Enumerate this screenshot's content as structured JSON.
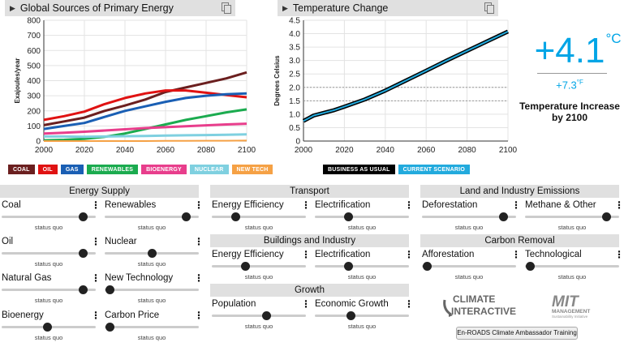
{
  "energy_panel": {
    "title": "Global Sources of Primary Energy"
  },
  "temp_panel": {
    "title": "Temperature Change"
  },
  "chart_data": [
    {
      "type": "area",
      "title": "Global Sources of Primary Energy",
      "ylabel": "Exajoules/year",
      "xlabel": "",
      "xlim": [
        2000,
        2100
      ],
      "ylim": [
        0,
        800
      ],
      "xticks": [
        "2000",
        "2020",
        "2040",
        "2060",
        "2080",
        "2100"
      ],
      "yticks": [
        "0",
        "100",
        "200",
        "300",
        "400",
        "500",
        "600",
        "700",
        "800"
      ],
      "grid": true,
      "series": [
        {
          "name": "COAL",
          "color": "#6b1f1f",
          "x": [
            2000,
            2010,
            2020,
            2030,
            2040,
            2050,
            2060,
            2070,
            2080,
            2090,
            2100
          ],
          "values": [
            105,
            130,
            155,
            200,
            235,
            275,
            325,
            355,
            385,
            415,
            455
          ]
        },
        {
          "name": "OIL",
          "color": "#e01212",
          "x": [
            2000,
            2010,
            2020,
            2030,
            2040,
            2050,
            2060,
            2070,
            2080,
            2090,
            2100
          ],
          "values": [
            140,
            165,
            195,
            245,
            285,
            315,
            335,
            335,
            320,
            305,
            290
          ]
        },
        {
          "name": "GAS",
          "color": "#1a5fb4",
          "x": [
            2000,
            2010,
            2020,
            2030,
            2040,
            2050,
            2060,
            2070,
            2080,
            2090,
            2100
          ],
          "values": [
            80,
            100,
            120,
            160,
            200,
            230,
            260,
            285,
            300,
            310,
            315
          ]
        },
        {
          "name": "RENEWABLES",
          "color": "#1bab4f",
          "x": [
            2000,
            2010,
            2020,
            2030,
            2040,
            2050,
            2060,
            2070,
            2080,
            2090,
            2100
          ],
          "values": [
            5,
            8,
            15,
            28,
            50,
            80,
            110,
            140,
            165,
            190,
            210
          ]
        },
        {
          "name": "BIOENERGY",
          "color": "#e83e8c",
          "x": [
            2000,
            2010,
            2020,
            2030,
            2040,
            2050,
            2060,
            2070,
            2080,
            2090,
            2100
          ],
          "values": [
            50,
            55,
            62,
            70,
            78,
            86,
            92,
            98,
            104,
            110,
            115
          ]
        },
        {
          "name": "NUCLEAR",
          "color": "#7fd0e0",
          "x": [
            2000,
            2010,
            2020,
            2030,
            2040,
            2050,
            2060,
            2070,
            2080,
            2090,
            2100
          ],
          "values": [
            30,
            30,
            28,
            30,
            32,
            34,
            36,
            38,
            40,
            42,
            44
          ]
        },
        {
          "name": "NEW TECH",
          "color": "#f5a145",
          "x": [
            2000,
            2010,
            2020,
            2030,
            2040,
            2050,
            2060,
            2070,
            2080,
            2090,
            2100
          ],
          "values": [
            0,
            0,
            0,
            0,
            0,
            0,
            1,
            1,
            2,
            2,
            3
          ]
        }
      ]
    },
    {
      "type": "line",
      "title": "Temperature Change",
      "ylabel": "Degrees Celsius",
      "xlabel": "",
      "xlim": [
        2000,
        2100
      ],
      "ylim": [
        0,
        4.5
      ],
      "xticks": [
        "2000",
        "2020",
        "2040",
        "2060",
        "2080",
        "2100"
      ],
      "yticks": [
        "0",
        "0.5",
        "1.0",
        "1.5",
        "2.0",
        "2.5",
        "3.0",
        "3.5",
        "4.0",
        "4.5"
      ],
      "reference_lines": [
        1.5,
        2.0
      ],
      "grid": true,
      "series": [
        {
          "name": "BUSINESS AS USUAL",
          "color": "#000000",
          "x": [
            2000,
            2005,
            2010,
            2015,
            2020,
            2030,
            2040,
            2050,
            2060,
            2070,
            2080,
            2090,
            2100
          ],
          "values": [
            0.75,
            0.95,
            1.05,
            1.15,
            1.28,
            1.55,
            1.88,
            2.25,
            2.62,
            3.0,
            3.36,
            3.72,
            4.08
          ]
        },
        {
          "name": "CURRENT SCENARIO",
          "color": "#22aadd",
          "x": [
            2000,
            2005,
            2010,
            2015,
            2020,
            2030,
            2040,
            2050,
            2060,
            2070,
            2080,
            2090,
            2100
          ],
          "values": [
            0.75,
            0.95,
            1.05,
            1.15,
            1.28,
            1.55,
            1.88,
            2.25,
            2.62,
            3.0,
            3.36,
            3.72,
            4.08
          ]
        }
      ]
    }
  ],
  "result": {
    "celsius_value": "+4.1",
    "celsius_unit": "°C",
    "fahrenheit_value": "+7.3",
    "fahrenheit_unit": "°F",
    "caption": "Temperature Increase by 2100"
  },
  "sections": {
    "energy_supply": "Energy Supply",
    "transport": "Transport",
    "buildings": "Buildings and Industry",
    "growth": "Growth",
    "land": "Land and Industry Emissions",
    "carbon": "Carbon Removal"
  },
  "status_quo": "status quo",
  "sliders": {
    "coal": {
      "label": "Coal",
      "level": 0.86
    },
    "renewables": {
      "label": "Renewables",
      "level": 0.86
    },
    "oil": {
      "label": "Oil",
      "level": 0.86
    },
    "nuclear": {
      "label": "Nuclear",
      "level": 0.5
    },
    "natural_gas": {
      "label": "Natural Gas",
      "level": 0.86
    },
    "new_technology": {
      "label": "New Technology",
      "level": 0.05
    },
    "bioenergy": {
      "label": "Bioenergy",
      "level": 0.48
    },
    "carbon_price": {
      "label": "Carbon Price",
      "level": 0.05
    },
    "transport_efficiency": {
      "label": "Energy Efficiency",
      "level": 0.25
    },
    "transport_electrification": {
      "label": "Electrification",
      "level": 0.35
    },
    "buildings_efficiency": {
      "label": "Energy Efficiency",
      "level": 0.35
    },
    "buildings_electrification": {
      "label": "Electrification",
      "level": 0.35
    },
    "population": {
      "label": "Population",
      "level": 0.58
    },
    "economic_growth": {
      "label": "Economic Growth",
      "level": 0.38
    },
    "deforestation": {
      "label": "Deforestation",
      "level": 0.86
    },
    "methane": {
      "label": "Methane & Other",
      "level": 0.86
    },
    "afforestation": {
      "label": "Afforestation",
      "level": 0.05
    },
    "technological": {
      "label": "Technological",
      "level": 0.05
    }
  },
  "logos": {
    "climate_interactive_top": "CLIMATE",
    "climate_interactive_bottom": "INTERACTIVE",
    "mit": "MIT",
    "mit_line1": "MANAGEMENT",
    "mit_line2": "Sustainability Initiative"
  },
  "training_button": "En-ROADS Climate Ambassador Training"
}
